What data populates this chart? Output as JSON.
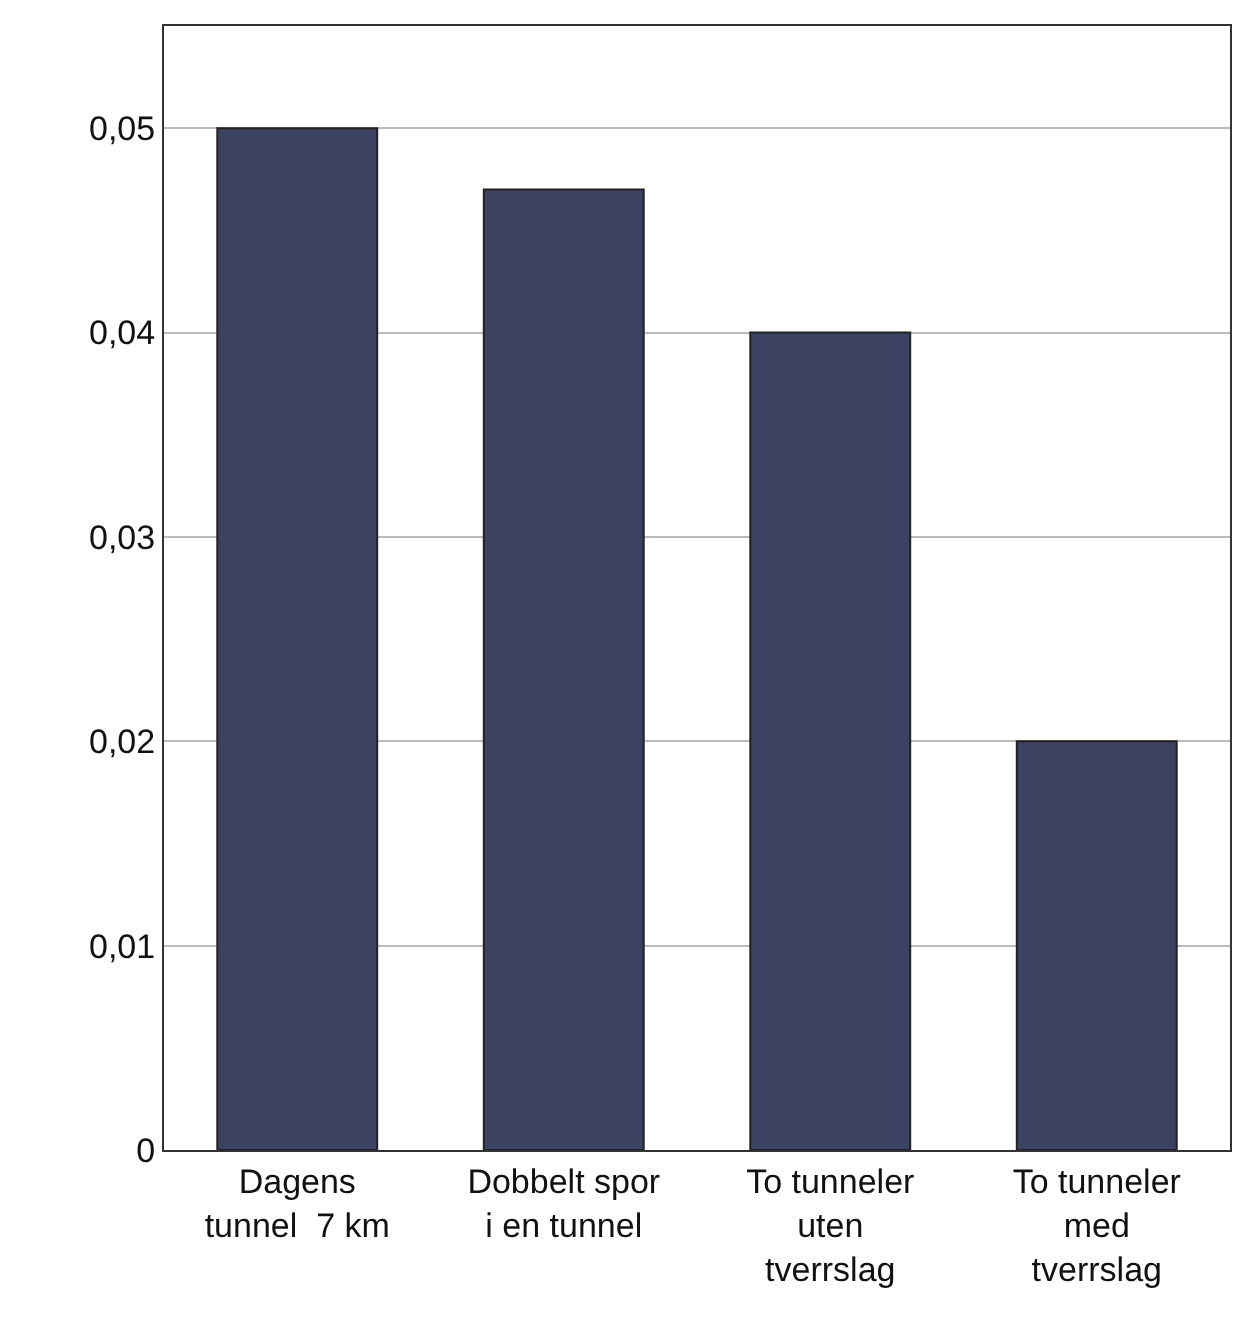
{
  "chart_data": {
    "type": "bar",
    "categories": [
      "Dagens\ntunnel  7 km",
      "Dobbelt spor\ni en tunnel",
      "To tunneler\nuten\ntverrslag",
      "To tunneler\nmed\ntverrslag"
    ],
    "values": [
      0.05,
      0.047,
      0.04,
      0.02
    ],
    "color": "#3b4262",
    "ylim": [
      0,
      0.055
    ],
    "yticks": [
      {
        "value": 0,
        "label": "0"
      },
      {
        "value": 0.01,
        "label": "0,01"
      },
      {
        "value": 0.02,
        "label": "0,02"
      },
      {
        "value": 0.03,
        "label": "0,03"
      },
      {
        "value": 0.04,
        "label": "0,04"
      },
      {
        "value": 0.05,
        "label": "0,05"
      }
    ],
    "grid": "y"
  }
}
